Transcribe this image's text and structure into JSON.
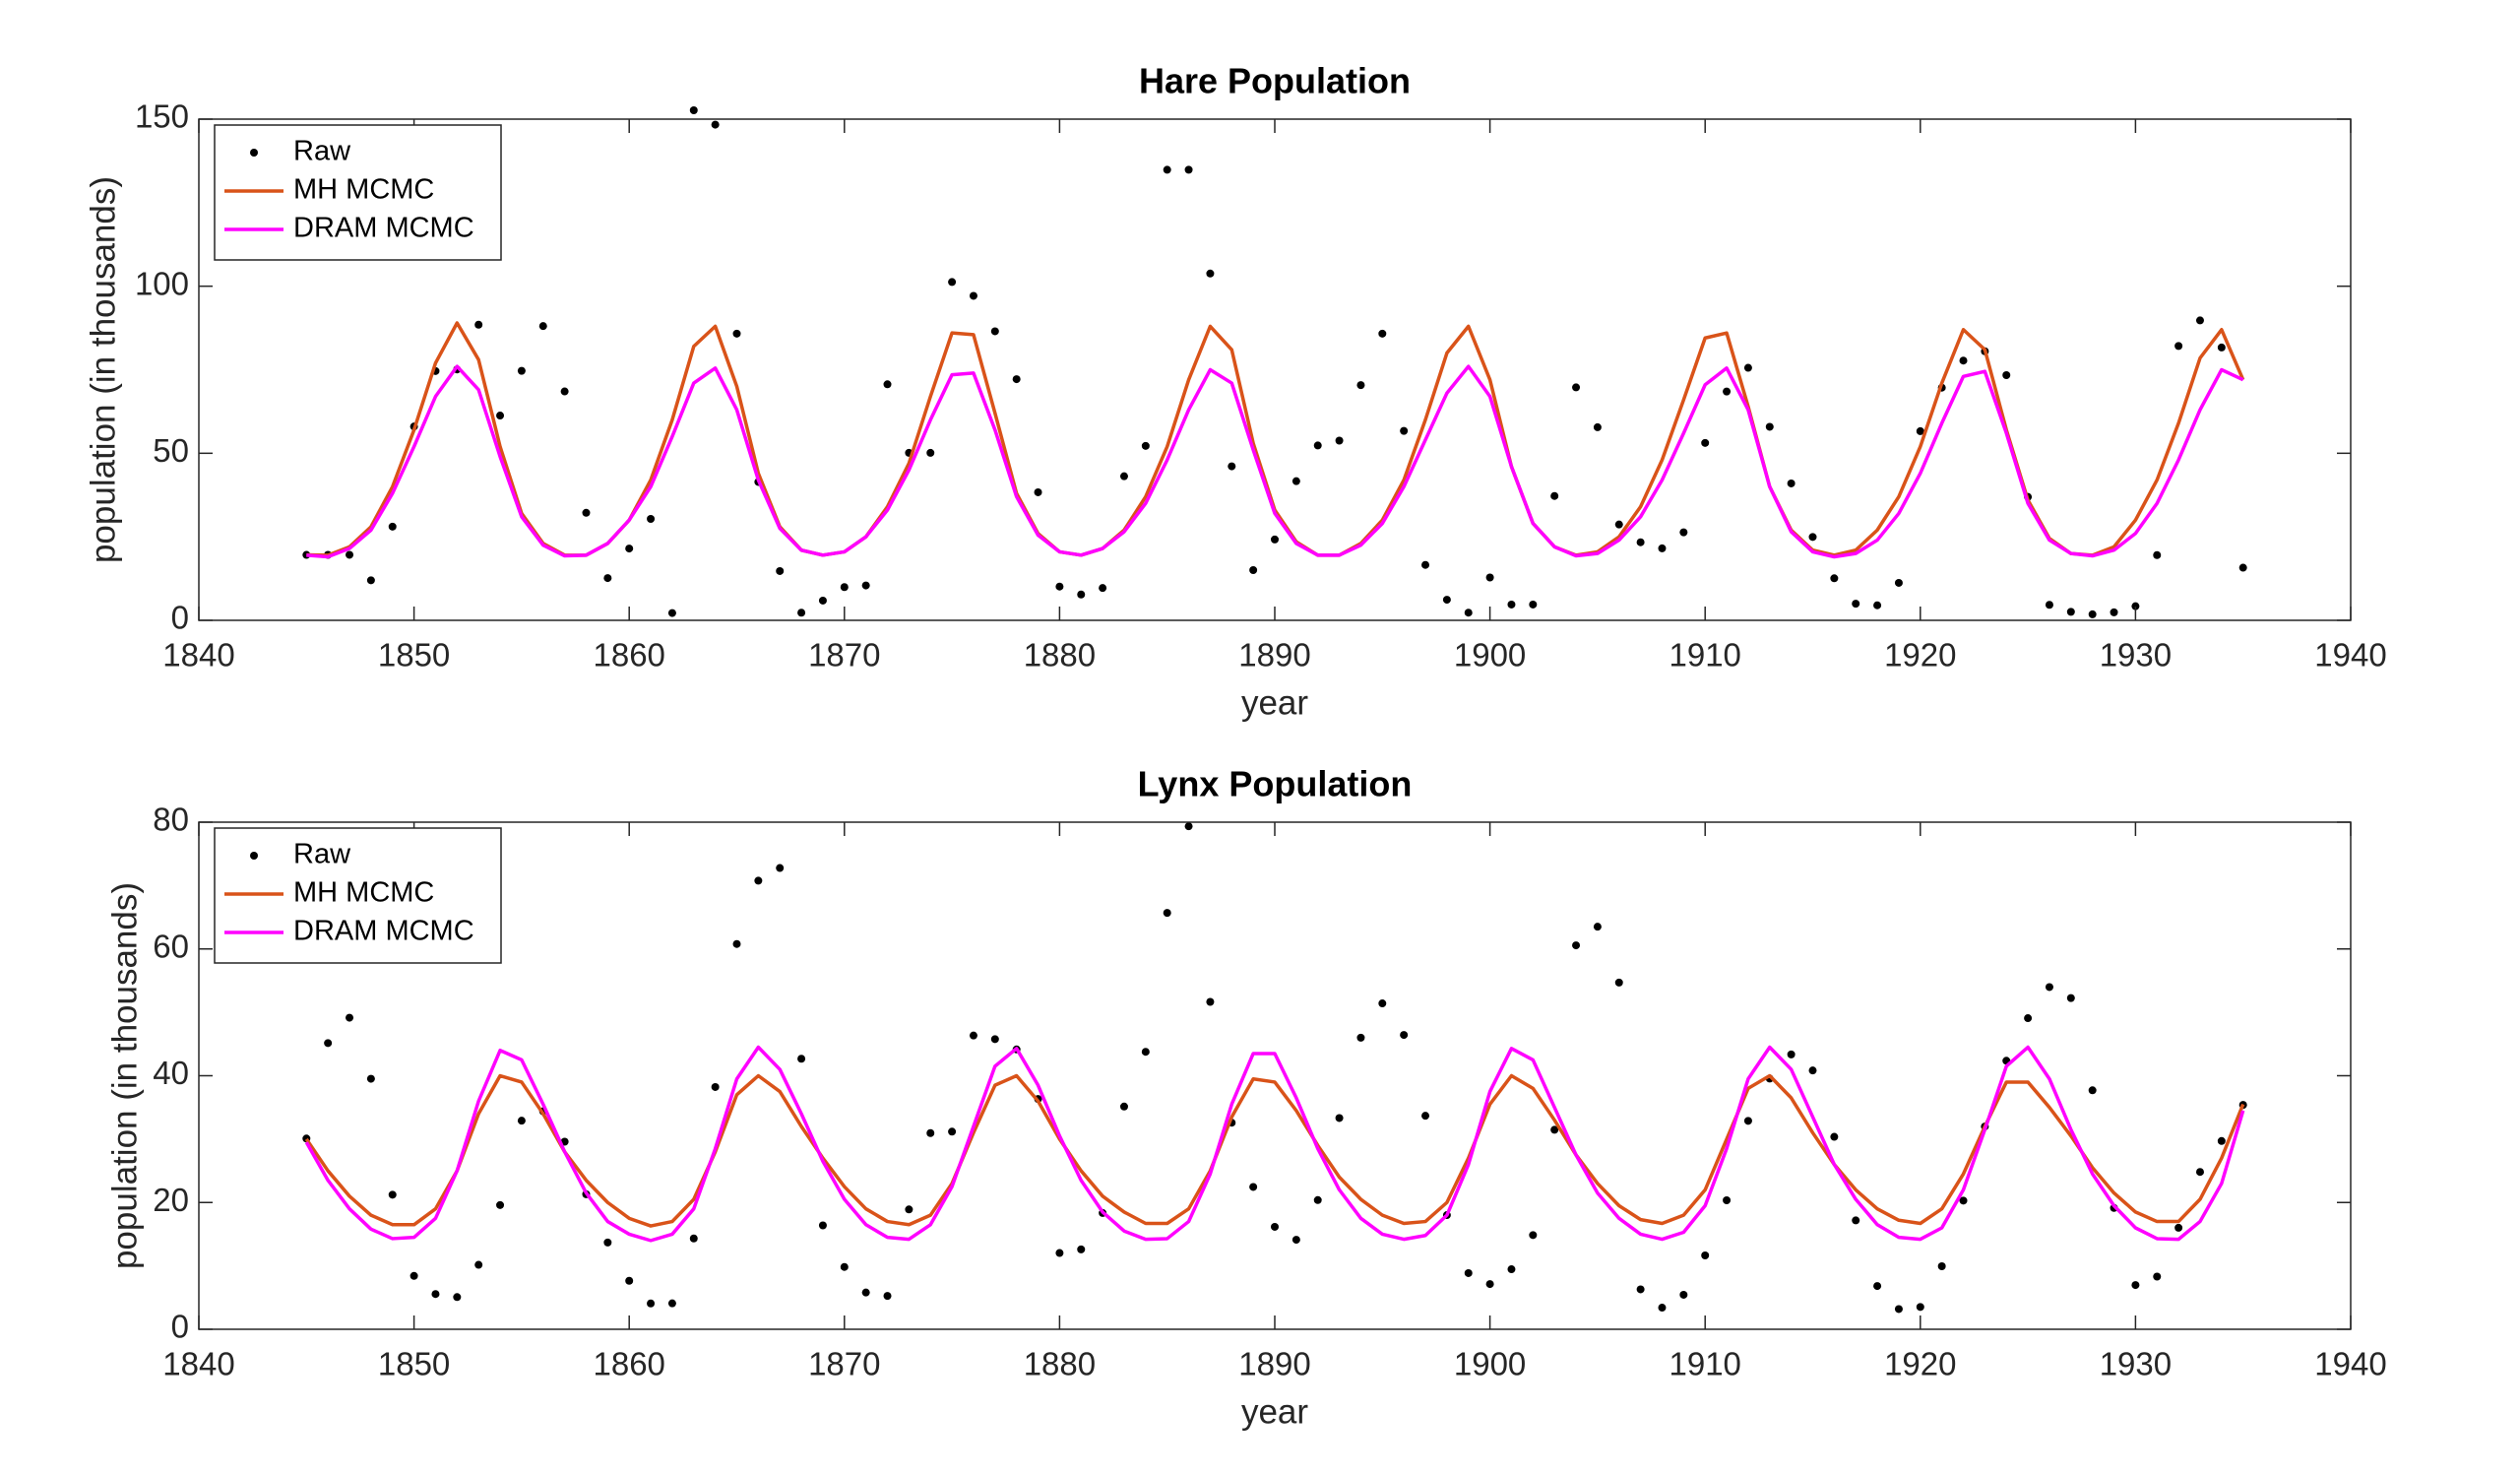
{
  "chart_data": [
    {
      "type": "line",
      "title": "Hare Population",
      "xlabel": "year",
      "ylabel": "population (in thousands)",
      "legend": "northwest",
      "grid": false,
      "xlim": [
        1840,
        1940
      ],
      "xticks": [
        1840,
        1850,
        1860,
        1870,
        1880,
        1890,
        1900,
        1910,
        1920,
        1930,
        1940
      ],
      "ylim": [
        0,
        150
      ],
      "yticks": [
        0,
        50,
        100,
        150
      ],
      "x": [
        1845,
        1846,
        1847,
        1848,
        1849,
        1850,
        1851,
        1852,
        1853,
        1854,
        1855,
        1856,
        1857,
        1858,
        1859,
        1860,
        1861,
        1862,
        1863,
        1864,
        1865,
        1866,
        1867,
        1868,
        1869,
        1870,
        1871,
        1872,
        1873,
        1874,
        1875,
        1876,
        1877,
        1878,
        1879,
        1880,
        1881,
        1882,
        1883,
        1884,
        1885,
        1886,
        1887,
        1888,
        1889,
        1890,
        1891,
        1892,
        1893,
        1894,
        1895,
        1896,
        1897,
        1898,
        1899,
        1900,
        1901,
        1902,
        1903,
        1904,
        1905,
        1906,
        1907,
        1908,
        1909,
        1910,
        1911,
        1912,
        1913,
        1914,
        1915,
        1916,
        1917,
        1918,
        1919,
        1920,
        1921,
        1922,
        1923,
        1924,
        1925,
        1926,
        1927,
        1928,
        1929,
        1930,
        1931,
        1932,
        1933,
        1934,
        1935
      ],
      "series": [
        {
          "name": "Raw",
          "color": "#000000",
          "style": "markers",
          "values": [
            19.58,
            19.6,
            19.61,
            11.99,
            28.04,
            58.0,
            74.6,
            75.09,
            88.48,
            61.28,
            74.67,
            88.06,
            68.51,
            32.19,
            12.64,
            21.49,
            30.35,
            2.18,
            152.65,
            148.36,
            85.81,
            41.41,
            14.75,
            2.28,
            5.91,
            9.95,
            10.44,
            70.64,
            50.12,
            50.13,
            101.25,
            97.12,
            86.51,
            72.17,
            38.32,
            10.11,
            7.74,
            9.67,
            43.12,
            52.21,
            134.85,
            134.86,
            103.79,
            46.1,
            15.03,
            24.2,
            41.65,
            52.34,
            53.78,
            70.4,
            85.81,
            56.69,
            16.59,
            6.16,
            2.3,
            12.82,
            4.72,
            4.73,
            37.22,
            69.72,
            57.78,
            28.68,
            23.37,
            21.54,
            26.34,
            53.1,
            68.48,
            75.58,
            57.92,
            40.97,
            24.95,
            12.59,
            4.97,
            4.5,
            11.21,
            56.6,
            69.63,
            77.74,
            80.53,
            73.38,
            36.93,
            4.64,
            2.54,
            1.8,
            2.39,
            4.23,
            19.52,
            82.11,
            89.76,
            81.66,
            15.76
          ]
        },
        {
          "name": "MH MCMC",
          "color": "#D95319",
          "style": "line",
          "values": [
            19.6,
            19.5,
            22,
            28,
            40,
            57,
            77,
            89,
            78,
            52,
            32,
            23,
            19.5,
            19.5,
            23,
            30,
            42,
            60,
            82,
            88,
            70,
            44,
            28,
            21,
            19.5,
            20.5,
            25,
            34,
            47,
            67,
            86,
            85.5,
            62,
            38,
            26,
            20.5,
            19.5,
            21.5,
            27,
            37,
            52,
            72,
            88,
            81,
            53,
            33,
            23.5,
            19.5,
            19.5,
            23,
            30,
            42,
            60,
            80,
            88,
            72,
            46,
            29,
            22,
            19.5,
            20.5,
            25,
            34,
            48,
            66,
            84.5,
            86,
            64,
            40,
            27,
            21,
            19.5,
            21,
            27,
            37,
            52,
            71,
            87,
            81,
            57,
            36,
            24.5,
            20,
            19.5,
            22,
            30,
            42,
            59,
            78.5,
            87,
            72
          ]
        },
        {
          "name": "DRAM MCMC",
          "color": "#FF00FF",
          "style": "line",
          "values": [
            19.5,
            19,
            21.5,
            27,
            38,
            52,
            67,
            76,
            69,
            49,
            31,
            22.5,
            19.3,
            19.5,
            23,
            30,
            40,
            55,
            71,
            75.5,
            63,
            42,
            27.5,
            21,
            19.5,
            20.5,
            25,
            33,
            45,
            60,
            73.5,
            74,
            57,
            37,
            25.5,
            20.5,
            19.5,
            21.5,
            26.5,
            35,
            48,
            63,
            75,
            71,
            51,
            32,
            23,
            19.5,
            19.5,
            22.5,
            29,
            40,
            54,
            68,
            76,
            67,
            46,
            29,
            22,
            19.3,
            20,
            24,
            31,
            42,
            56,
            70.5,
            75.5,
            63,
            40,
            26.5,
            20.5,
            19,
            20,
            24,
            32,
            44,
            59,
            73,
            74.5,
            56,
            35,
            24,
            20,
            19.3,
            21,
            26,
            35,
            48,
            63,
            75,
            72
          ]
        }
      ]
    },
    {
      "type": "line",
      "title": "Lynx Population",
      "xlabel": "year",
      "ylabel": "population (in thousands)",
      "legend": "northwest",
      "grid": false,
      "xlim": [
        1840,
        1940
      ],
      "xticks": [
        1840,
        1850,
        1860,
        1870,
        1880,
        1890,
        1900,
        1910,
        1920,
        1930,
        1940
      ],
      "ylim": [
        0,
        80
      ],
      "yticks": [
        0,
        20,
        40,
        60,
        80
      ],
      "x": [
        1845,
        1846,
        1847,
        1848,
        1849,
        1850,
        1851,
        1852,
        1853,
        1854,
        1855,
        1856,
        1857,
        1858,
        1859,
        1860,
        1861,
        1862,
        1863,
        1864,
        1865,
        1866,
        1867,
        1868,
        1869,
        1870,
        1871,
        1872,
        1873,
        1874,
        1875,
        1876,
        1877,
        1878,
        1879,
        1880,
        1881,
        1882,
        1883,
        1884,
        1885,
        1886,
        1887,
        1888,
        1889,
        1890,
        1891,
        1892,
        1893,
        1894,
        1895,
        1896,
        1897,
        1898,
        1899,
        1900,
        1901,
        1902,
        1903,
        1904,
        1905,
        1906,
        1907,
        1908,
        1909,
        1910,
        1911,
        1912,
        1913,
        1914,
        1915,
        1916,
        1917,
        1918,
        1919,
        1920,
        1921,
        1922,
        1923,
        1924,
        1925,
        1926,
        1927,
        1928,
        1929,
        1930,
        1931,
        1932,
        1933,
        1934,
        1935
      ],
      "series": [
        {
          "name": "Raw",
          "color": "#000000",
          "style": "markers",
          "values": [
            30.09,
            45.15,
            49.15,
            39.52,
            21.23,
            8.42,
            5.56,
            5.08,
            10.17,
            19.6,
            32.91,
            34.38,
            29.59,
            21.3,
            13.69,
            7.65,
            4.08,
            4.09,
            14.33,
            38.22,
            60.78,
            70.77,
            72.77,
            42.68,
            16.39,
            9.83,
            5.8,
            5.26,
            18.91,
            30.95,
            31.18,
            46.34,
            45.77,
            44.15,
            36.33,
            12.03,
            12.6,
            18.34,
            35.14,
            43.77,
            65.69,
            79.35,
            51.65,
            32.59,
            22.45,
            16.16,
            14.12,
            20.38,
            33.33,
            46.0,
            51.41,
            46.43,
            33.68,
            18.01,
            8.86,
            7.13,
            9.47,
            14.86,
            31.47,
            60.57,
            63.51,
            54.7,
            6.3,
            3.41,
            5.44,
            11.65,
            20.35,
            32.88,
            39.55,
            43.36,
            40.83,
            30.36,
            17.18,
            6.82,
            3.19,
            3.52,
            9.94,
            20.3,
            31.99,
            42.36,
            49.08,
            53.99,
            52.25,
            37.7,
            19.14,
            6.98,
            8.31,
            16.01,
            24.82,
            29.7,
            35.4
          ]
        },
        {
          "name": "MH MCMC",
          "color": "#D95319",
          "style": "line",
          "values": [
            30,
            25,
            21,
            18,
            16.5,
            16.5,
            19,
            25,
            34,
            40,
            39,
            34,
            28,
            23.5,
            20,
            17.5,
            16.3,
            17,
            20.5,
            28,
            37,
            40,
            37.5,
            32,
            27,
            22.5,
            19,
            17,
            16.5,
            18,
            23,
            31,
            38.5,
            40,
            36,
            30,
            25,
            21,
            18.5,
            16.7,
            16.7,
            19,
            25,
            33.5,
            39.5,
            39,
            34.5,
            29,
            24,
            20.5,
            18,
            16.7,
            17,
            20,
            27,
            35.5,
            40,
            38,
            33,
            27.5,
            23,
            19.5,
            17.3,
            16.7,
            18,
            22,
            30,
            38,
            40,
            36.5,
            31,
            26,
            22,
            19,
            17.2,
            16.7,
            19,
            24.5,
            32,
            39,
            39,
            35,
            30.5,
            25.5,
            21.5,
            18.5,
            17,
            17,
            20.5,
            27,
            35.5
          ]
        },
        {
          "name": "DRAM MCMC",
          "color": "#FF00FF",
          "style": "line",
          "values": [
            29.5,
            23.5,
            19,
            15.8,
            14.3,
            14.5,
            17.5,
            25,
            36,
            44,
            42.5,
            35.5,
            28,
            21.5,
            17,
            15,
            14,
            15,
            19,
            28.5,
            39.5,
            44.5,
            41,
            34,
            26.5,
            20.5,
            16.5,
            14.5,
            14.2,
            16.5,
            22.5,
            32,
            41.5,
            44.3,
            38.5,
            30.5,
            23.5,
            18.5,
            15.5,
            14.2,
            14.3,
            17,
            24.5,
            35.5,
            43.5,
            43.5,
            36.5,
            28.5,
            22,
            17.5,
            15,
            14.2,
            14.8,
            18,
            26,
            37.5,
            44.3,
            42.5,
            35,
            27.5,
            21.5,
            17.5,
            15,
            14.2,
            15.3,
            19.5,
            28.5,
            39.5,
            44.5,
            41,
            33.5,
            26,
            20.5,
            16.5,
            14.5,
            14.2,
            16,
            22,
            31.5,
            41.5,
            44.5,
            39.5,
            31.5,
            24.5,
            19.5,
            16,
            14.3,
            14.2,
            17,
            23,
            34.5
          ]
        }
      ]
    }
  ]
}
